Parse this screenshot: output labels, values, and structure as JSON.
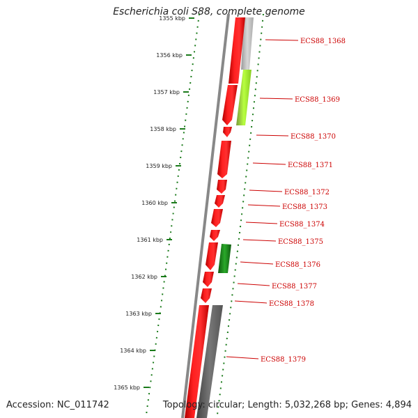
{
  "title": "Escherichia coli S88, complete genome",
  "accession": "Accession: NC_011742",
  "topology": "Topology: circular; Length: 5,032,268 bp; Genes: 4,894",
  "colors": {
    "cds": "#ff0000",
    "label": "#cc0000",
    "tick": "#1a7a1a",
    "backbone": "#888888",
    "rna_green": "#1e8c1e",
    "lime": "#aaff33",
    "dark_gray": "#666666",
    "light_gray": "#cccccc"
  },
  "ticks": [
    {
      "label": "1355 kbp"
    },
    {
      "label": "1356 kbp"
    },
    {
      "label": "1357 kbp"
    },
    {
      "label": "1358 kbp"
    },
    {
      "label": "1359 kbp"
    },
    {
      "label": "1360 kbp"
    },
    {
      "label": "1361 kbp"
    },
    {
      "label": "1362 kbp"
    },
    {
      "label": "1363 kbp"
    },
    {
      "label": "1364 kbp"
    },
    {
      "label": "1365 kbp"
    }
  ],
  "gene_labels": [
    {
      "label": "ECS88_1368"
    },
    {
      "label": "ECS88_1369"
    },
    {
      "label": "ECS88_1370"
    },
    {
      "label": "ECS88_1371"
    },
    {
      "label": "ECS88_1372"
    },
    {
      "label": "ECS88_1373"
    },
    {
      "label": "ECS88_1374"
    },
    {
      "label": "ECS88_1375"
    },
    {
      "label": "ECS88_1376"
    },
    {
      "label": "ECS88_1377"
    },
    {
      "label": "ECS88_1378"
    },
    {
      "label": "ECS88_1379"
    }
  ]
}
